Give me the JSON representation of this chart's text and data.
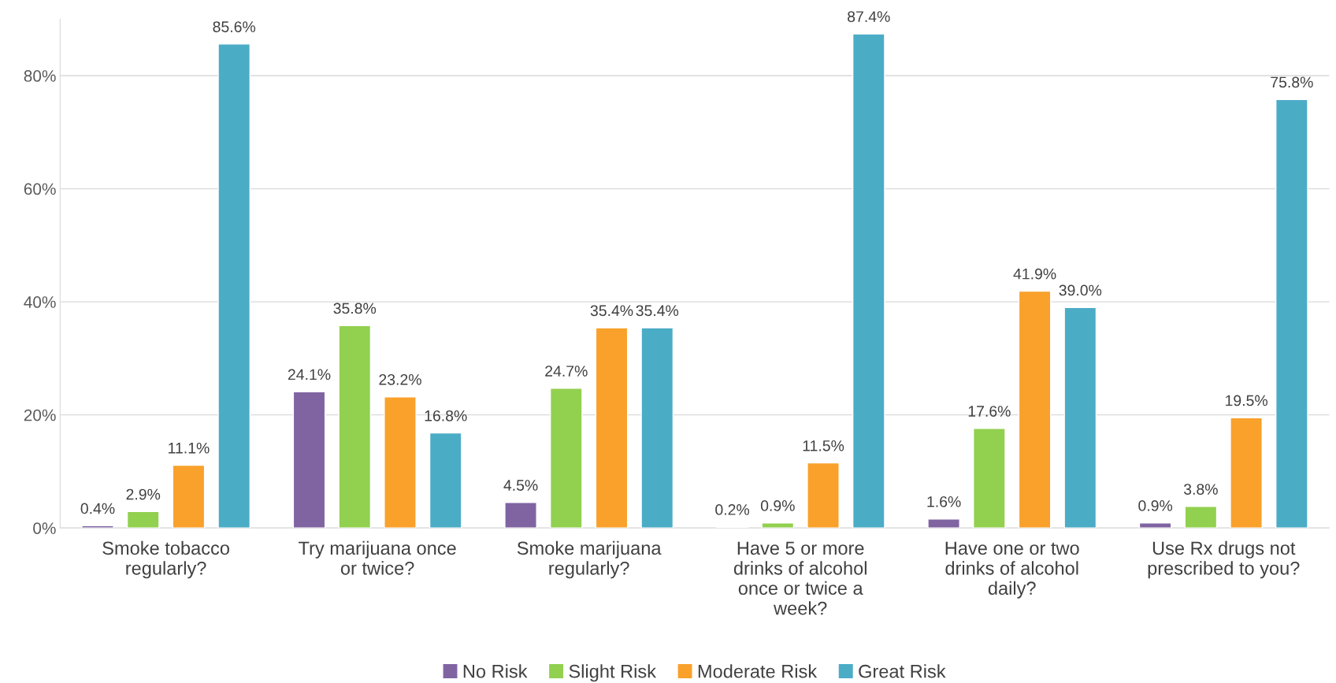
{
  "chart_data": {
    "type": "bar",
    "categories": [
      "Smoke tobacco regularly?",
      "Try marijuana once or twice?",
      "Smoke marijuana regularly?",
      "Have 5 or more drinks of alcohol once or twice a week?",
      "Have one or two drinks of alcohol daily?",
      "Use Rx drugs not prescribed to you?"
    ],
    "series": [
      {
        "name": "No Risk",
        "color": "#8064a2",
        "values": [
          0.4,
          24.1,
          4.5,
          0.2,
          1.6,
          0.9
        ],
        "value_labels": [
          "0.4%",
          "24.1%",
          "4.5%",
          "0.2%",
          "1.6%",
          "0.9%"
        ]
      },
      {
        "name": "Slight Risk",
        "color": "#92d050",
        "values": [
          2.9,
          35.8,
          24.7,
          0.9,
          17.6,
          3.8
        ],
        "value_labels": [
          "2.9%",
          "35.8%",
          "24.7%",
          "0.9%",
          "17.6%",
          "3.8%"
        ]
      },
      {
        "name": "Moderate Risk",
        "color": "#f9a12b",
        "values": [
          11.1,
          23.2,
          35.4,
          11.5,
          41.9,
          19.5
        ],
        "value_labels": [
          "11.1%",
          "23.2%",
          "35.4%",
          "11.5%",
          "41.9%",
          "19.5%"
        ]
      },
      {
        "name": "Great Risk",
        "color": "#4bacc6",
        "values": [
          85.6,
          16.8,
          35.4,
          87.4,
          39.0,
          75.8
        ],
        "value_labels": [
          "85.6%",
          "16.8%",
          "35.4%",
          "87.4%",
          "39.0%",
          "75.8%"
        ]
      }
    ],
    "ylim": [
      0,
      90
    ],
    "yticks": [
      {
        "value": 0,
        "label": "0%"
      },
      {
        "value": 20,
        "label": "20%"
      },
      {
        "value": 40,
        "label": "40%"
      },
      {
        "value": 60,
        "label": "60%"
      },
      {
        "value": 80,
        "label": "80%"
      }
    ],
    "grid": "y",
    "legend": "bottom"
  }
}
